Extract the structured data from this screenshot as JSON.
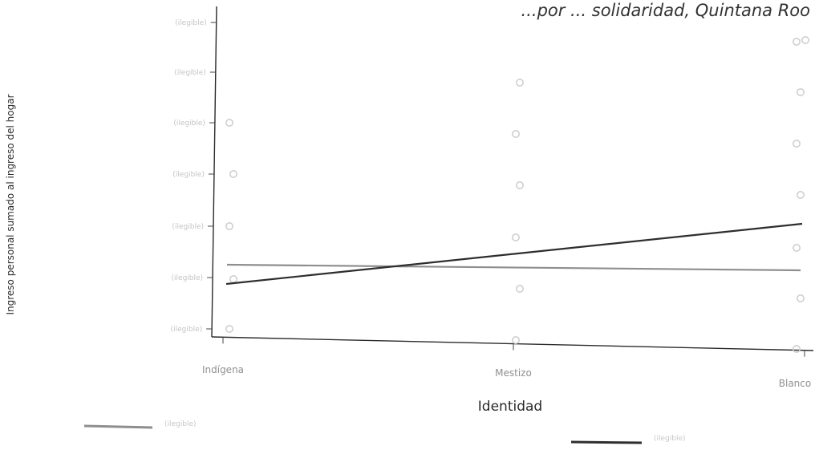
{
  "chart_data": {
    "type": "scatter",
    "title": "...por ... solidaridad, Quintana Roo",
    "xlabel": "Identidad",
    "ylabel": "Ingreso personal sumado al ingreso del hogar",
    "categories": [
      "Indígena",
      "Mestizo",
      "Blanco"
    ],
    "y_ticks": [
      "(ilegible)",
      "(ilegible)",
      "(ilegible)",
      "(ilegible)",
      "(ilegible)",
      "(ilegible)",
      "(ilegible)"
    ],
    "points": {
      "Indígena": [
        1,
        2,
        3,
        4,
        5
      ],
      "Mestizo": [
        1,
        2,
        3,
        4,
        5,
        6
      ],
      "Blanco": [
        1,
        2,
        3,
        4,
        5,
        6,
        7,
        8
      ]
    },
    "series": [
      {
        "name": "(ilegible)",
        "kind": "fit",
        "values": [
          2.9,
          2.8,
          2.8
        ],
        "color": "#8e8e8e"
      },
      {
        "name": "(ilegible)",
        "kind": "fit",
        "values": [
          2.0,
          2.8,
          3.6
        ],
        "color": "#2e2e2e"
      }
    ],
    "ylim": [
      1,
      7.2
    ],
    "grid": false,
    "legend": "bottom"
  }
}
